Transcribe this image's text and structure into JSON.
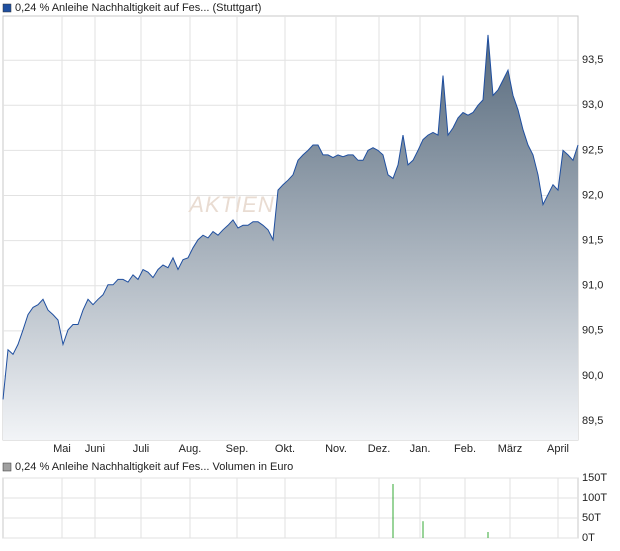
{
  "chart_data": [
    {
      "type": "area",
      "watermark": "AKTIEN",
      "x": [
        0,
        1,
        2,
        3,
        4,
        5,
        6,
        7,
        8,
        9,
        10,
        11,
        12,
        13,
        14,
        15,
        16,
        17,
        18,
        19,
        20,
        21,
        22,
        23,
        24,
        25,
        26,
        27,
        28,
        29,
        30,
        31,
        32,
        33,
        34,
        35,
        36,
        37,
        38,
        39,
        40,
        41,
        42,
        43,
        44,
        45,
        46,
        47,
        48,
        49,
        50,
        51,
        52,
        53,
        54,
        55,
        56,
        57,
        58,
        59,
        60,
        61,
        62,
        63,
        64,
        65,
        66,
        67,
        68,
        69,
        70,
        71,
        72,
        73,
        74,
        75,
        76,
        77,
        78,
        79,
        80,
        81,
        82,
        83,
        84,
        85,
        86,
        87,
        88,
        89,
        90,
        91,
        92,
        93,
        94,
        95,
        96,
        97,
        98,
        99,
        100,
        101,
        102,
        103,
        104,
        105,
        106,
        107,
        108,
        109,
        110,
        111,
        112,
        113,
        114,
        115
      ],
      "xlim": [
        0,
        115
      ],
      "xticks": [
        {
          "value": 11.8,
          "label": "Mai"
        },
        {
          "value": 18.4,
          "label": "Juni"
        },
        {
          "value": 27.6,
          "label": "Juli"
        },
        {
          "value": 37.4,
          "label": "Aug."
        },
        {
          "value": 46.8,
          "label": "Sep."
        },
        {
          "value": 56.4,
          "label": "Okt."
        },
        {
          "value": 66.6,
          "label": "Nov."
        },
        {
          "value": 75.2,
          "label": "Dez."
        },
        {
          "value": 83.4,
          "label": "Jan."
        },
        {
          "value": 92.4,
          "label": "Feb."
        },
        {
          "value": 101.4,
          "label": "März"
        },
        {
          "value": 111,
          "label": "April"
        }
      ],
      "ylim": [
        89.29,
        93.99
      ],
      "yticks": [
        {
          "value": 89.5,
          "label": "89,5"
        },
        {
          "value": 90,
          "label": "90,0"
        },
        {
          "value": 90.5,
          "label": "90,5"
        },
        {
          "value": 91,
          "label": "91,0"
        },
        {
          "value": 91.5,
          "label": "91,5"
        },
        {
          "value": 92,
          "label": "92,0"
        },
        {
          "value": 92.5,
          "label": "92,5"
        },
        {
          "value": 93,
          "label": "93,0"
        },
        {
          "value": 93.5,
          "label": "93,5"
        }
      ],
      "grid": true,
      "series": [
        {
          "name": "0,24 % Anleihe Nachhaltigkeit auf Fes... (Stuttgart)",
          "color": "#1f4fa0",
          "values": [
            89.74,
            90.29,
            90.24,
            90.35,
            90.51,
            90.68,
            90.76,
            90.79,
            90.85,
            90.73,
            90.68,
            90.62,
            90.35,
            90.51,
            90.57,
            90.57,
            90.73,
            90.85,
            90.79,
            90.85,
            90.9,
            91.01,
            91.01,
            91.07,
            91.07,
            91.04,
            91.12,
            91.07,
            91.18,
            91.15,
            91.09,
            91.18,
            91.23,
            91.2,
            91.31,
            91.18,
            91.29,
            91.31,
            91.42,
            91.51,
            91.56,
            91.53,
            91.6,
            91.56,
            91.62,
            91.67,
            91.73,
            91.64,
            91.67,
            91.67,
            91.71,
            91.71,
            91.67,
            91.62,
            91.51,
            92.06,
            92.12,
            92.17,
            92.23,
            92.39,
            92.45,
            92.5,
            92.56,
            92.56,
            92.45,
            92.45,
            92.42,
            92.45,
            92.43,
            92.45,
            92.45,
            92.39,
            92.39,
            92.5,
            92.53,
            92.5,
            92.45,
            92.23,
            92.19,
            92.34,
            92.67,
            92.34,
            92.39,
            92.5,
            92.62,
            92.67,
            92.7,
            92.67,
            93.33,
            92.67,
            92.75,
            92.86,
            92.92,
            92.89,
            92.92,
            93.0,
            93.06,
            93.78,
            93.11,
            93.17,
            93.28,
            93.39,
            93.11,
            92.95,
            92.73,
            92.56,
            92.45,
            92.23,
            91.9,
            92.01,
            92.12,
            92.06,
            92.5,
            92.45,
            92.39,
            92.56
          ]
        }
      ]
    },
    {
      "type": "bar",
      "x": [
        78,
        84,
        97
      ],
      "xlim": [
        0,
        115
      ],
      "ylim": [
        0,
        150000
      ],
      "yticks": [
        {
          "value": 0,
          "label": "0T"
        },
        {
          "value": 50000,
          "label": "50T"
        },
        {
          "value": 100000,
          "label": "100T"
        },
        {
          "value": 150000,
          "label": "150T"
        }
      ],
      "grid": true,
      "bar_color": "#33aa33",
      "series": [
        {
          "name": "0,24 % Anleihe Nachhaltigkeit auf Fes... Volumen in Euro",
          "color": "#a0a0a0",
          "values": [
            135000,
            42000,
            15000
          ]
        }
      ]
    }
  ]
}
